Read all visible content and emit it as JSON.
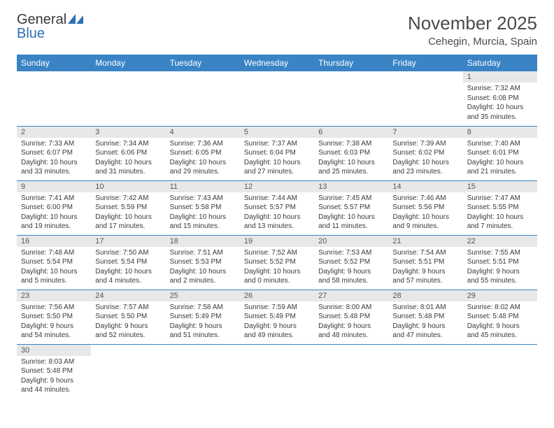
{
  "brand": {
    "name1": "General",
    "name2": "Blue"
  },
  "title": "November 2025",
  "location": "Cehegin, Murcia, Spain",
  "colors": {
    "header_bg": "#3a84c5",
    "header_text": "#ffffff",
    "daynum_bg": "#e8e8e8",
    "cell_border": "#3a84c5",
    "text": "#3a3a3a",
    "brand_gray": "#3a3a3a",
    "brand_blue": "#2d6fb5"
  },
  "weekdays": [
    "Sunday",
    "Monday",
    "Tuesday",
    "Wednesday",
    "Thursday",
    "Friday",
    "Saturday"
  ],
  "weeks": [
    [
      null,
      null,
      null,
      null,
      null,
      null,
      {
        "n": "1",
        "sr": "7:32 AM",
        "ss": "6:08 PM",
        "dl": "10 hours and 35 minutes."
      }
    ],
    [
      {
        "n": "2",
        "sr": "7:33 AM",
        "ss": "6:07 PM",
        "dl": "10 hours and 33 minutes."
      },
      {
        "n": "3",
        "sr": "7:34 AM",
        "ss": "6:06 PM",
        "dl": "10 hours and 31 minutes."
      },
      {
        "n": "4",
        "sr": "7:36 AM",
        "ss": "6:05 PM",
        "dl": "10 hours and 29 minutes."
      },
      {
        "n": "5",
        "sr": "7:37 AM",
        "ss": "6:04 PM",
        "dl": "10 hours and 27 minutes."
      },
      {
        "n": "6",
        "sr": "7:38 AM",
        "ss": "6:03 PM",
        "dl": "10 hours and 25 minutes."
      },
      {
        "n": "7",
        "sr": "7:39 AM",
        "ss": "6:02 PM",
        "dl": "10 hours and 23 minutes."
      },
      {
        "n": "8",
        "sr": "7:40 AM",
        "ss": "6:01 PM",
        "dl": "10 hours and 21 minutes."
      }
    ],
    [
      {
        "n": "9",
        "sr": "7:41 AM",
        "ss": "6:00 PM",
        "dl": "10 hours and 19 minutes."
      },
      {
        "n": "10",
        "sr": "7:42 AM",
        "ss": "5:59 PM",
        "dl": "10 hours and 17 minutes."
      },
      {
        "n": "11",
        "sr": "7:43 AM",
        "ss": "5:58 PM",
        "dl": "10 hours and 15 minutes."
      },
      {
        "n": "12",
        "sr": "7:44 AM",
        "ss": "5:57 PM",
        "dl": "10 hours and 13 minutes."
      },
      {
        "n": "13",
        "sr": "7:45 AM",
        "ss": "5:57 PM",
        "dl": "10 hours and 11 minutes."
      },
      {
        "n": "14",
        "sr": "7:46 AM",
        "ss": "5:56 PM",
        "dl": "10 hours and 9 minutes."
      },
      {
        "n": "15",
        "sr": "7:47 AM",
        "ss": "5:55 PM",
        "dl": "10 hours and 7 minutes."
      }
    ],
    [
      {
        "n": "16",
        "sr": "7:48 AM",
        "ss": "5:54 PM",
        "dl": "10 hours and 5 minutes."
      },
      {
        "n": "17",
        "sr": "7:50 AM",
        "ss": "5:54 PM",
        "dl": "10 hours and 4 minutes."
      },
      {
        "n": "18",
        "sr": "7:51 AM",
        "ss": "5:53 PM",
        "dl": "10 hours and 2 minutes."
      },
      {
        "n": "19",
        "sr": "7:52 AM",
        "ss": "5:52 PM",
        "dl": "10 hours and 0 minutes."
      },
      {
        "n": "20",
        "sr": "7:53 AM",
        "ss": "5:52 PM",
        "dl": "9 hours and 58 minutes."
      },
      {
        "n": "21",
        "sr": "7:54 AM",
        "ss": "5:51 PM",
        "dl": "9 hours and 57 minutes."
      },
      {
        "n": "22",
        "sr": "7:55 AM",
        "ss": "5:51 PM",
        "dl": "9 hours and 55 minutes."
      }
    ],
    [
      {
        "n": "23",
        "sr": "7:56 AM",
        "ss": "5:50 PM",
        "dl": "9 hours and 54 minutes."
      },
      {
        "n": "24",
        "sr": "7:57 AM",
        "ss": "5:50 PM",
        "dl": "9 hours and 52 minutes."
      },
      {
        "n": "25",
        "sr": "7:58 AM",
        "ss": "5:49 PM",
        "dl": "9 hours and 51 minutes."
      },
      {
        "n": "26",
        "sr": "7:59 AM",
        "ss": "5:49 PM",
        "dl": "9 hours and 49 minutes."
      },
      {
        "n": "27",
        "sr": "8:00 AM",
        "ss": "5:48 PM",
        "dl": "9 hours and 48 minutes."
      },
      {
        "n": "28",
        "sr": "8:01 AM",
        "ss": "5:48 PM",
        "dl": "9 hours and 47 minutes."
      },
      {
        "n": "29",
        "sr": "8:02 AM",
        "ss": "5:48 PM",
        "dl": "9 hours and 45 minutes."
      }
    ],
    [
      {
        "n": "30",
        "sr": "8:03 AM",
        "ss": "5:48 PM",
        "dl": "9 hours and 44 minutes."
      },
      null,
      null,
      null,
      null,
      null,
      null
    ]
  ],
  "labels": {
    "sunrise": "Sunrise:",
    "sunset": "Sunset:",
    "daylight": "Daylight:"
  }
}
